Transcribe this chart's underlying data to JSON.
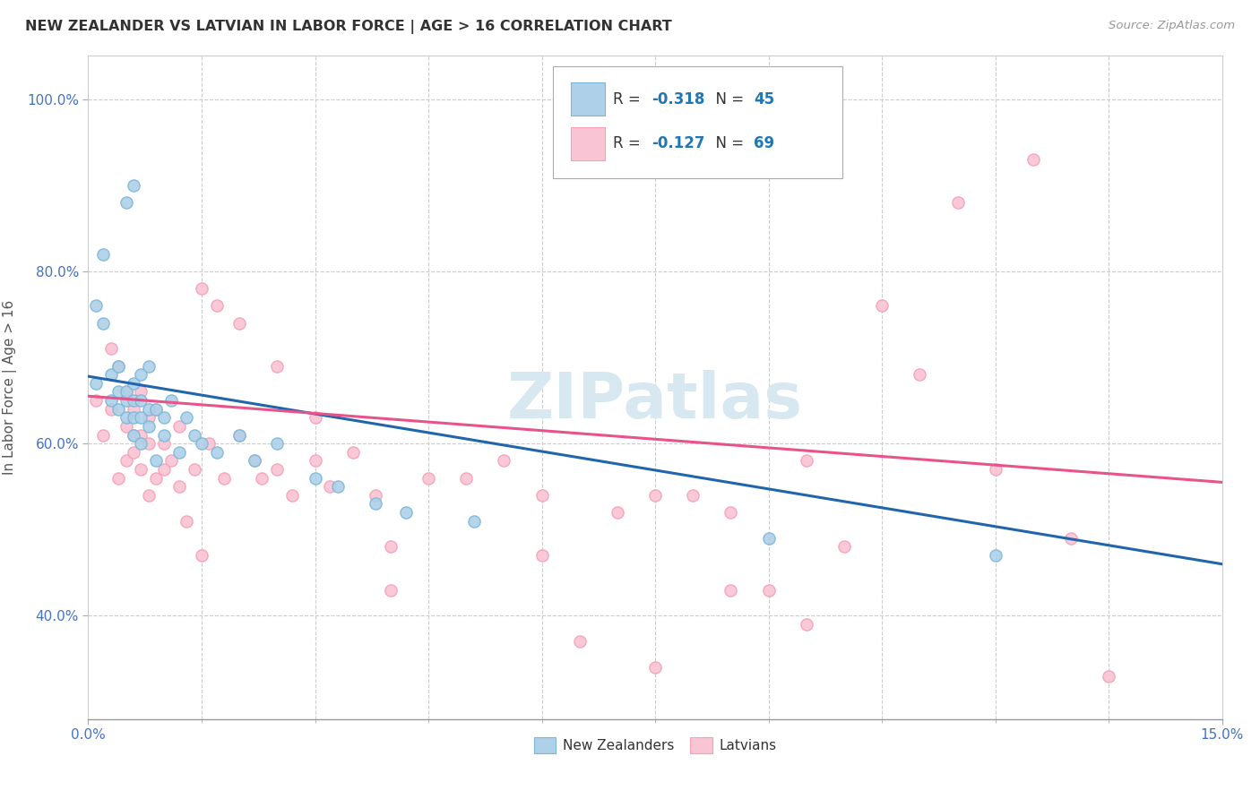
{
  "title": "NEW ZEALANDER VS LATVIAN IN LABOR FORCE | AGE > 16 CORRELATION CHART",
  "source": "Source: ZipAtlas.com",
  "ylabel": "In Labor Force | Age > 16",
  "xlim": [
    0.0,
    0.15
  ],
  "ylim": [
    0.28,
    1.05
  ],
  "ytick_labels": [
    "40.0%",
    "60.0%",
    "80.0%",
    "100.0%"
  ],
  "ytick_values": [
    0.4,
    0.6,
    0.8,
    1.0
  ],
  "nz_color": "#7ab8d9",
  "nz_color_fill": "#aed0e8",
  "latvian_color": "#f5a0b8",
  "latvian_color_fill": "#f9c4d3",
  "nz_line_color": "#2166ac",
  "latvian_line_color": "#e8538a",
  "nz_R": -0.318,
  "nz_N": 45,
  "latvian_R": -0.127,
  "latvian_N": 69,
  "watermark": "ZIPatlas",
  "background_color": "#ffffff",
  "nz_x": [
    0.001,
    0.001,
    0.002,
    0.002,
    0.003,
    0.003,
    0.004,
    0.004,
    0.004,
    0.005,
    0.005,
    0.005,
    0.005,
    0.006,
    0.006,
    0.006,
    0.006,
    0.006,
    0.007,
    0.007,
    0.007,
    0.007,
    0.008,
    0.008,
    0.008,
    0.009,
    0.009,
    0.01,
    0.01,
    0.011,
    0.012,
    0.013,
    0.014,
    0.015,
    0.017,
    0.02,
    0.022,
    0.025,
    0.03,
    0.033,
    0.038,
    0.042,
    0.051,
    0.09,
    0.12
  ],
  "nz_y": [
    0.67,
    0.76,
    0.74,
    0.82,
    0.65,
    0.68,
    0.64,
    0.66,
    0.69,
    0.63,
    0.65,
    0.66,
    0.88,
    0.61,
    0.63,
    0.65,
    0.67,
    0.9,
    0.6,
    0.63,
    0.65,
    0.68,
    0.62,
    0.64,
    0.69,
    0.58,
    0.64,
    0.61,
    0.63,
    0.65,
    0.59,
    0.63,
    0.61,
    0.6,
    0.59,
    0.61,
    0.58,
    0.6,
    0.56,
    0.55,
    0.53,
    0.52,
    0.51,
    0.49,
    0.47
  ],
  "latvian_x": [
    0.001,
    0.002,
    0.003,
    0.003,
    0.004,
    0.004,
    0.005,
    0.005,
    0.005,
    0.006,
    0.006,
    0.006,
    0.007,
    0.007,
    0.007,
    0.008,
    0.008,
    0.008,
    0.009,
    0.009,
    0.01,
    0.01,
    0.011,
    0.012,
    0.012,
    0.013,
    0.014,
    0.015,
    0.016,
    0.017,
    0.018,
    0.02,
    0.022,
    0.023,
    0.025,
    0.027,
    0.03,
    0.032,
    0.035,
    0.038,
    0.04,
    0.045,
    0.05,
    0.055,
    0.06,
    0.065,
    0.07,
    0.075,
    0.08,
    0.085,
    0.09,
    0.095,
    0.1,
    0.105,
    0.11,
    0.115,
    0.12,
    0.125,
    0.13,
    0.135,
    0.04,
    0.06,
    0.075,
    0.085,
    0.095,
    0.015,
    0.02,
    0.025,
    0.03
  ],
  "latvian_y": [
    0.65,
    0.61,
    0.64,
    0.71,
    0.56,
    0.69,
    0.58,
    0.62,
    0.66,
    0.59,
    0.61,
    0.64,
    0.57,
    0.61,
    0.66,
    0.54,
    0.6,
    0.63,
    0.56,
    0.64,
    0.57,
    0.6,
    0.58,
    0.55,
    0.62,
    0.51,
    0.57,
    0.47,
    0.6,
    0.76,
    0.56,
    0.61,
    0.58,
    0.56,
    0.57,
    0.54,
    0.58,
    0.55,
    0.59,
    0.54,
    0.48,
    0.56,
    0.56,
    0.58,
    0.54,
    0.37,
    0.52,
    0.54,
    0.54,
    0.43,
    0.43,
    0.58,
    0.48,
    0.76,
    0.68,
    0.88,
    0.57,
    0.93,
    0.49,
    0.33,
    0.43,
    0.47,
    0.34,
    0.52,
    0.39,
    0.78,
    0.74,
    0.69,
    0.63
  ]
}
